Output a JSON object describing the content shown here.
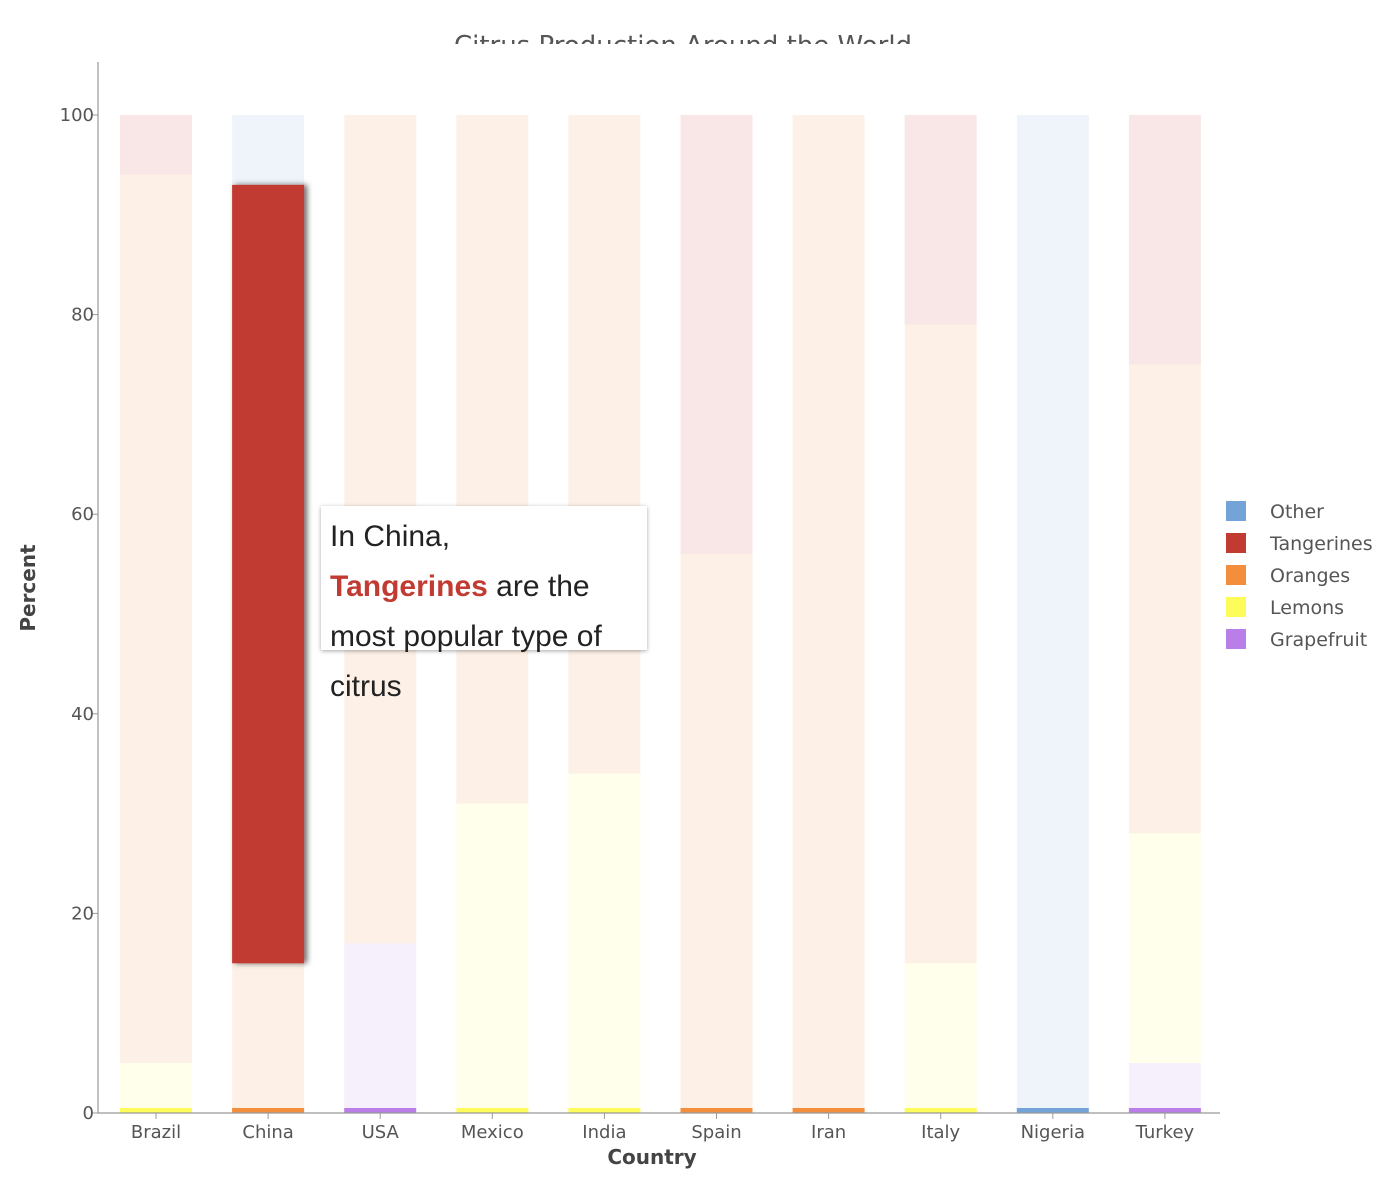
{
  "chart_data": {
    "type": "bar",
    "stacked": true,
    "title": "Citrus Production Around the World",
    "xlabel": "Country",
    "ylabel": "Percent",
    "ylim": [
      0,
      100
    ],
    "yticks": [
      0,
      20,
      40,
      60,
      80,
      100
    ],
    "categories": [
      "Brazil",
      "China",
      "USA",
      "Mexico",
      "India",
      "Spain",
      "Iran",
      "Italy",
      "Nigeria",
      "Turkey"
    ],
    "series": [
      {
        "name": "Grapefruit",
        "color": "#b97ee8",
        "values": [
          0,
          0,
          17,
          0,
          0,
          0,
          0,
          0,
          0,
          5
        ]
      },
      {
        "name": "Lemons",
        "color": "#fdfc5b",
        "values": [
          5,
          0,
          0,
          31,
          34,
          0,
          0,
          15,
          0,
          23
        ]
      },
      {
        "name": "Oranges",
        "color": "#f28e3c",
        "values": [
          89,
          15,
          83,
          69,
          66,
          56,
          100,
          64,
          0,
          47
        ]
      },
      {
        "name": "Tangerines",
        "color": "#c23b33",
        "values": [
          6,
          78,
          0,
          0,
          0,
          44,
          0,
          21,
          0,
          25
        ]
      },
      {
        "name": "Other",
        "color": "#74a3d8",
        "values": [
          0,
          7,
          0,
          0,
          0,
          0,
          0,
          0,
          100,
          0
        ]
      }
    ],
    "legend_order": [
      "Other",
      "Tangerines",
      "Oranges",
      "Lemons",
      "Grapefruit"
    ],
    "legend_position": "right",
    "highlight": {
      "category": "China",
      "series": "Tangerines"
    },
    "grid": false
  },
  "annotation": {
    "prefix": "In China,",
    "highlight": "Tangerines",
    "suffix": "are the most popular type of citrus"
  }
}
